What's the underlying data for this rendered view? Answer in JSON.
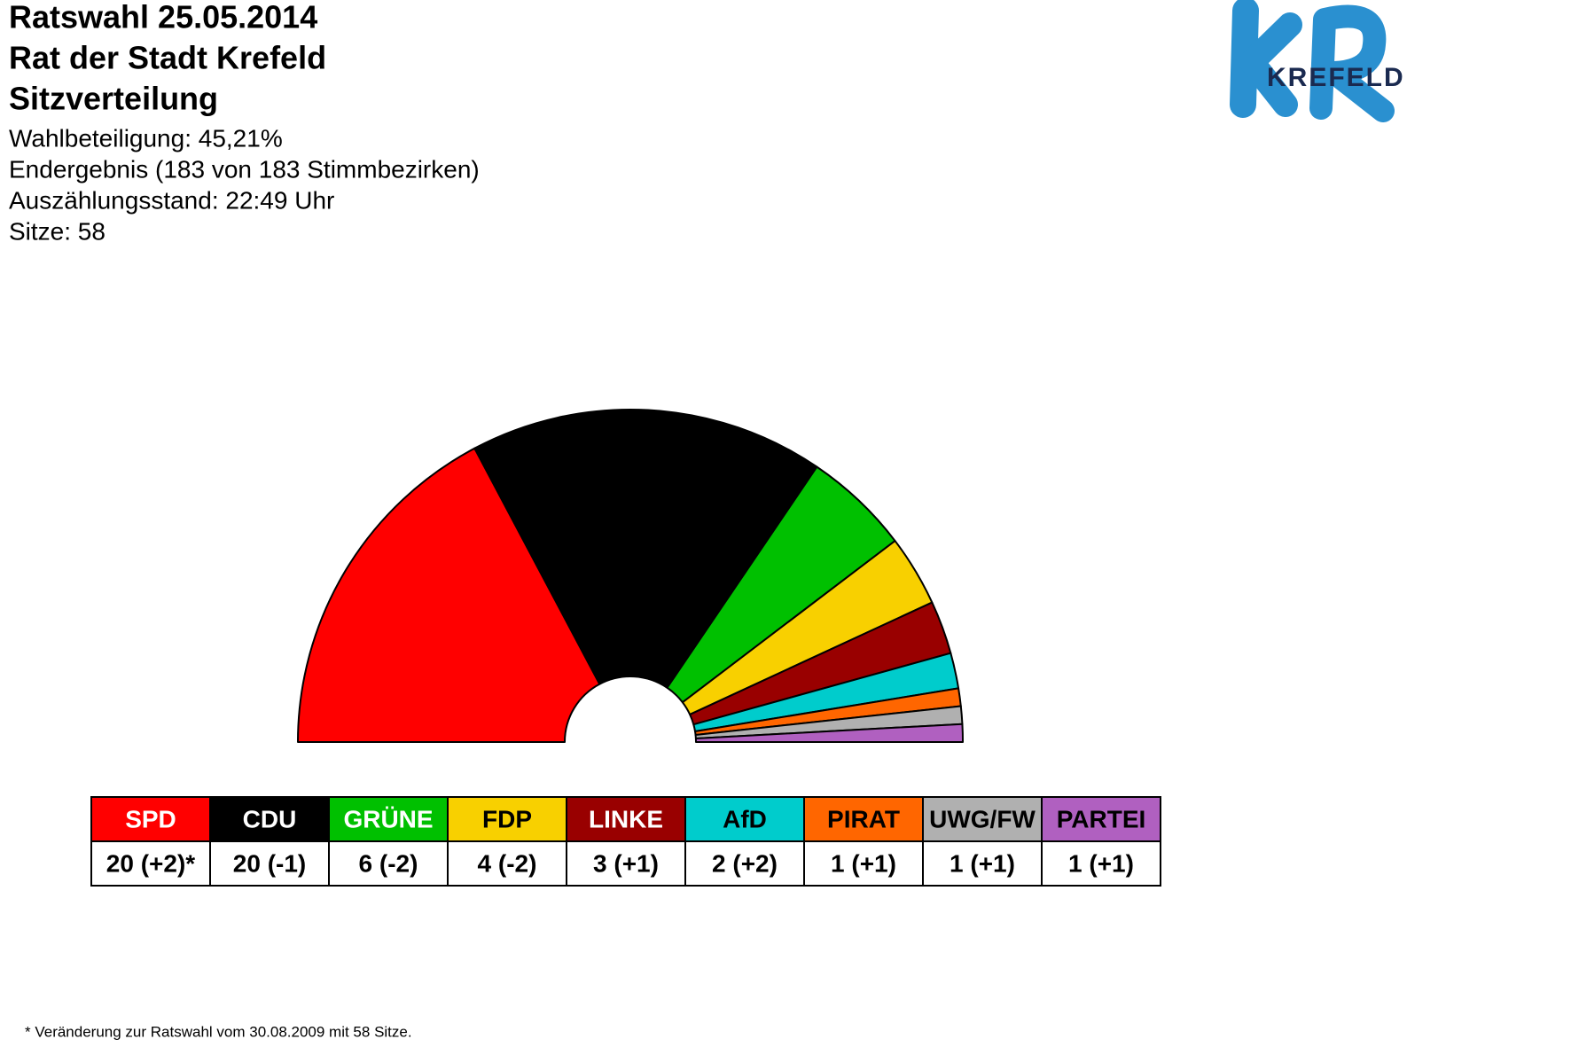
{
  "chart_data": {
    "type": "half-donut",
    "title": [
      "Ratswahl 25.05.2014",
      "Rat der Stadt Krefeld",
      "Sitzverteilung"
    ],
    "info": [
      "Wahlbeteiligung: 45,21%",
      "Endergebnis (183 von 183 Stimmbezirken)",
      "Auszählungsstand: 22:49 Uhr",
      "Sitze: 58"
    ],
    "logo_text": "KREFELD",
    "categories": [
      "SPD",
      "CDU",
      "GRÜNE",
      "FDP",
      "LINKE",
      "AfD",
      "PIRAT",
      "UWG/FW",
      "PARTEI"
    ],
    "values": [
      20,
      20,
      6,
      4,
      3,
      2,
      1,
      1,
      1
    ],
    "value_labels": [
      "20 (+2)*",
      "20 (-1)",
      "6 (-2)",
      "4 (-2)",
      "3 (+1)",
      "2 (+2)",
      "1 (+1)",
      "1 (+1)",
      "1 (+1)"
    ],
    "colors": [
      "#ff0000",
      "#000000",
      "#00c000",
      "#f8d000",
      "#990000",
      "#00cccc",
      "#ff6600",
      "#b0b0b0",
      "#b060c0"
    ],
    "header_text_colors": [
      "#ffffff",
      "#ffffff",
      "#ffffff",
      "#000000",
      "#ffffff",
      "#000000",
      "#000000",
      "#000000",
      "#000000"
    ],
    "footnote": "* Veränderung zur Ratswahl vom 30.08.2009 mit 58 Sitze."
  }
}
